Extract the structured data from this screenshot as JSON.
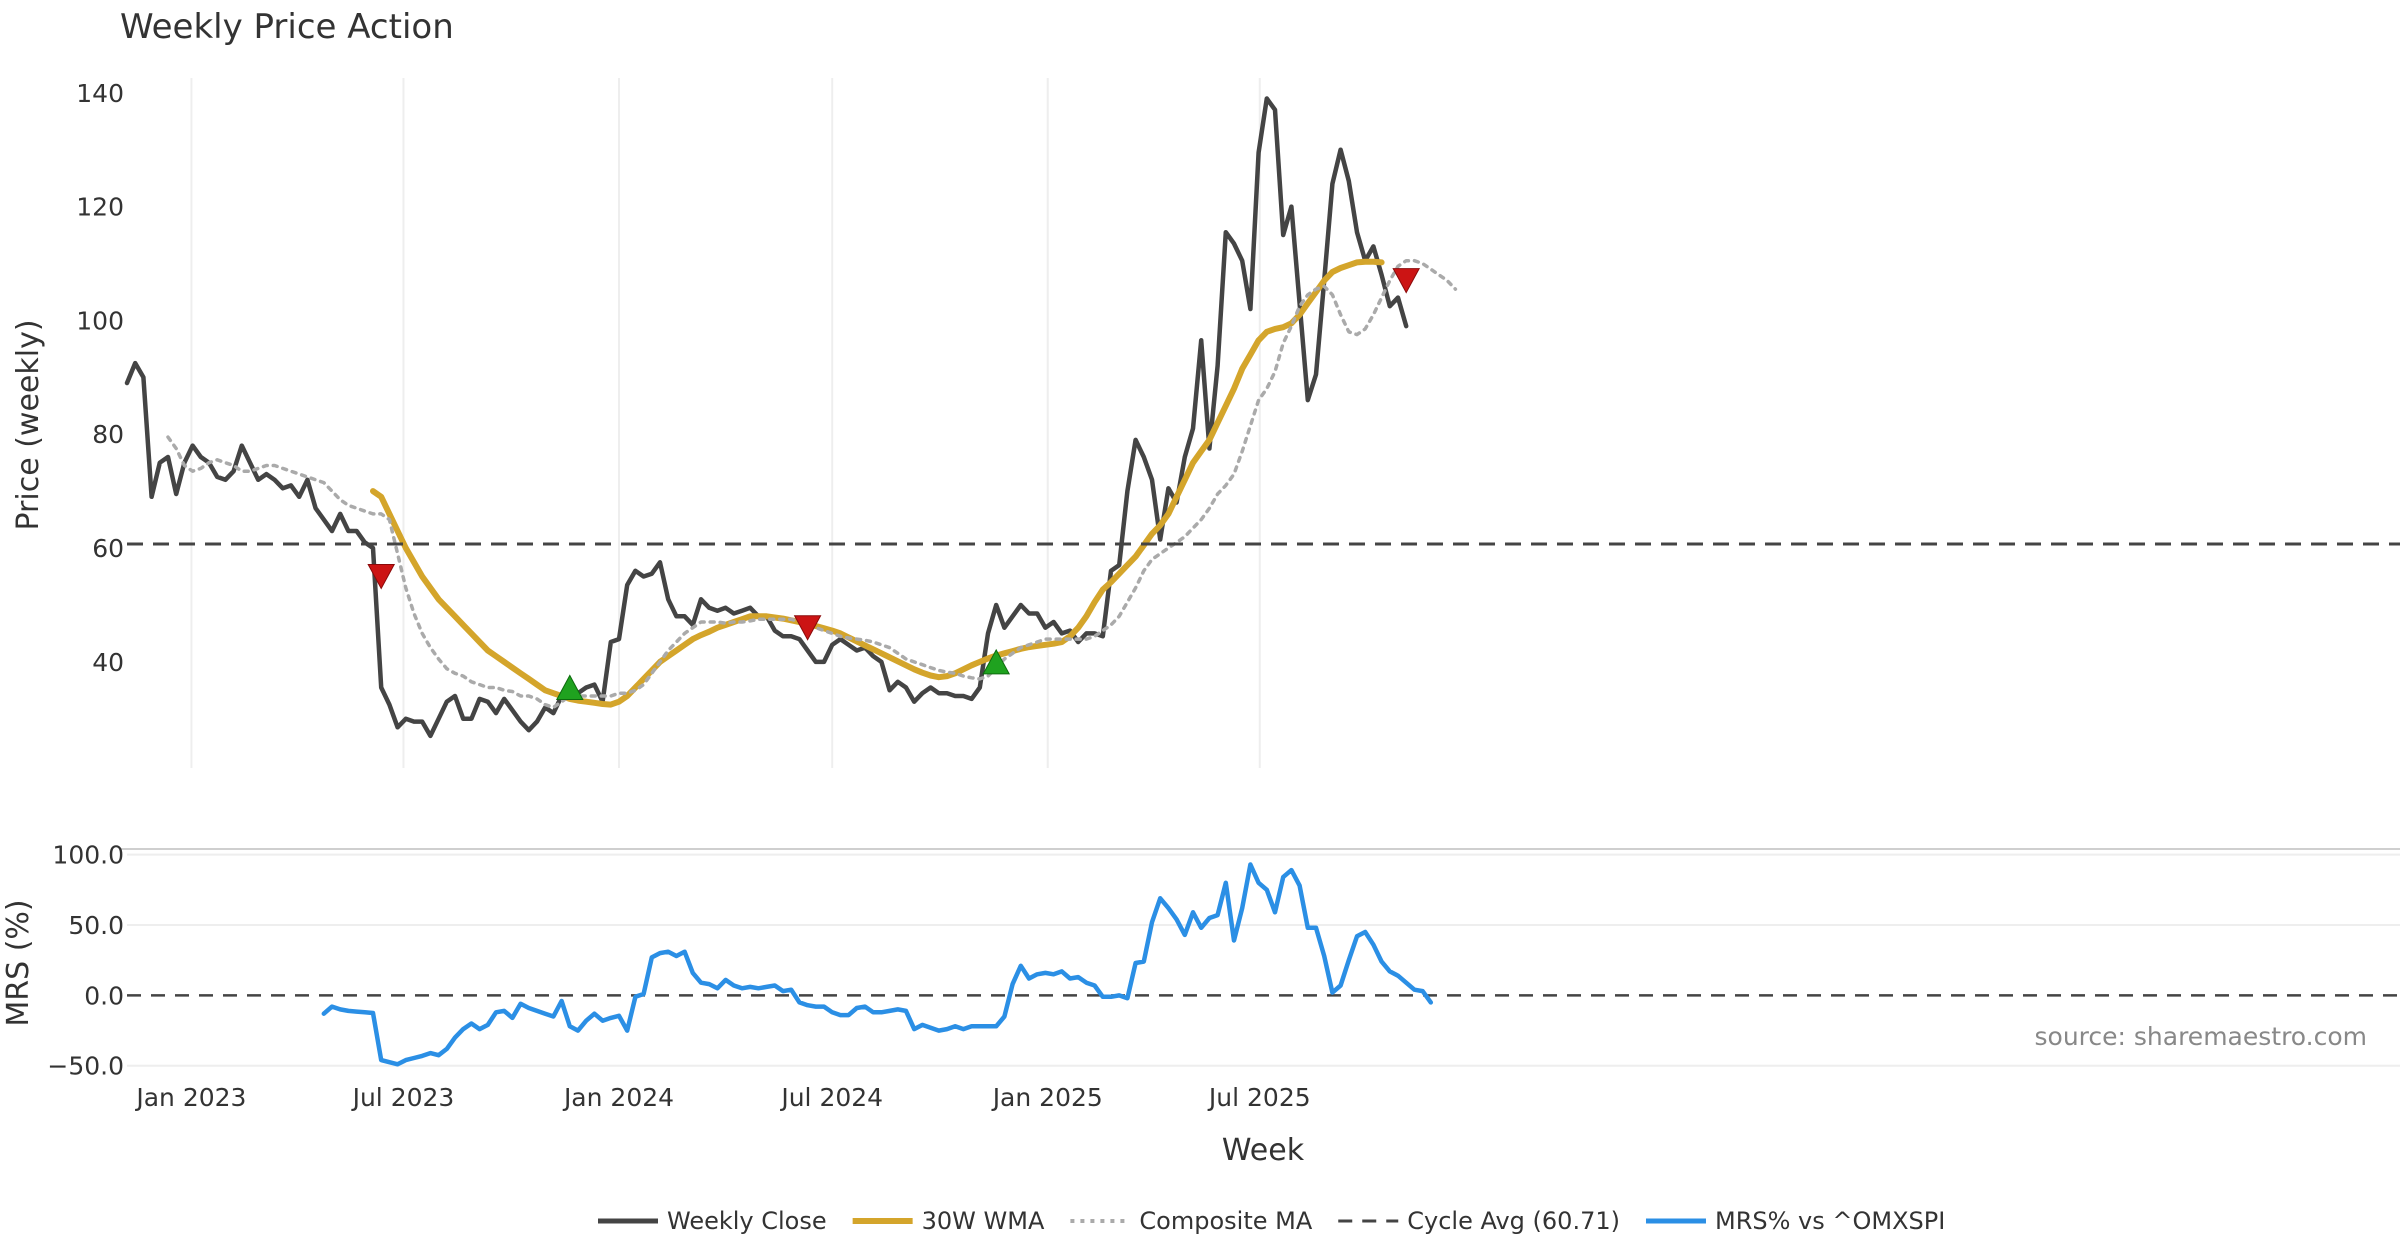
{
  "chart_data": {
    "type": "line",
    "title": "Weekly Price Action",
    "xlabel": "Week",
    "source": "source: sharemaestro.com",
    "x_start": "2022-11-07",
    "x_step_days": 7,
    "x_ticks": [
      "Jan 2023",
      "Jul 2023",
      "Jan 2024",
      "Jul 2024",
      "Jan 2025",
      "Jul 2025"
    ],
    "x_tick_dates": [
      "2023-01-01",
      "2023-07-01",
      "2024-01-01",
      "2024-07-01",
      "2025-01-01",
      "2025-07-01"
    ],
    "price_panel": {
      "ylabel": "Price (weekly)",
      "ylim": [
        21,
        144
      ],
      "y_ticks": [
        "40",
        "60",
        "80",
        "100",
        "120",
        "140"
      ],
      "y_tick_values": [
        40,
        60,
        80,
        100,
        120,
        140
      ],
      "series": [
        {
          "name": "Weekly Close",
          "color": "#444444",
          "style": "solid",
          "values": [
            89,
            92.5,
            90,
            69,
            75,
            76,
            69.5,
            75,
            78,
            76,
            75,
            72.5,
            72,
            73.5,
            78,
            75,
            72,
            73,
            72,
            70.5,
            71,
            69,
            72,
            67,
            65,
            63,
            66,
            63,
            63,
            61,
            60,
            35.5,
            32.5,
            28.5,
            30,
            29.5,
            29.5,
            27,
            30,
            33,
            34,
            30,
            30,
            33.5,
            33,
            31,
            33.5,
            31.5,
            29.5,
            28,
            29.5,
            32,
            31,
            34,
            34.5,
            34.5,
            35.5,
            36,
            33,
            43.5,
            44,
            53.5,
            56,
            55,
            55.5,
            57.5,
            51,
            48,
            48,
            46.5,
            51,
            49.5,
            49,
            49.5,
            48.5,
            49,
            49.5,
            48,
            48,
            45.5,
            44.5,
            44.5,
            44,
            42,
            40,
            40,
            43,
            44,
            43,
            42,
            42.5,
            41,
            40,
            35,
            36.5,
            35.5,
            33,
            34.5,
            35.5,
            34.5,
            34.5,
            34,
            34,
            33.5,
            35.5,
            45,
            50,
            46,
            48,
            50,
            48.5,
            48.5,
            46,
            47,
            45,
            45.5,
            43.5,
            45,
            45,
            44.5,
            56,
            57,
            70,
            79,
            76,
            72,
            61.5,
            70.5,
            68,
            76,
            81,
            96.5,
            77.5,
            92,
            115.5,
            113.5,
            110.5,
            102,
            129.5,
            139,
            137,
            115,
            120,
            103,
            86,
            90.5,
            107,
            124,
            130,
            124.5,
            115.5,
            110.5,
            113,
            108,
            102.5,
            104,
            99
          ]
        },
        {
          "name": "30W WMA",
          "color": "#D4A52B",
          "style": "solid",
          "start_index": 30,
          "values": [
            70,
            69,
            66,
            63,
            60,
            57.5,
            55,
            53,
            51,
            49.5,
            48,
            46.5,
            45,
            43.5,
            42,
            41,
            40,
            39,
            38,
            37,
            36,
            35,
            34.5,
            34,
            33.5,
            33.2,
            33,
            32.8,
            32.6,
            32.5,
            33,
            34,
            35.5,
            37,
            38.5,
            40,
            41,
            42,
            43,
            44,
            44.7,
            45.3,
            46,
            46.5,
            47,
            47.5,
            48,
            48,
            48,
            47.8,
            47.6,
            47.3,
            47,
            46.6,
            46.3,
            45.9,
            45.5,
            45,
            44.3,
            43.6,
            42.9,
            42.2,
            41.5,
            40.8,
            40.1,
            39.4,
            38.7,
            38.1,
            37.6,
            37.3,
            37.5,
            38,
            38.7,
            39.4,
            40,
            40.6,
            41.1,
            41.5,
            41.9,
            42.3,
            42.6,
            42.8,
            43,
            43.2,
            43.5,
            44.5,
            46,
            48,
            50.5,
            52.7,
            54,
            55.5,
            57,
            58.5,
            60.5,
            62.5,
            64,
            66,
            69,
            72,
            75,
            77,
            79,
            82,
            85,
            88,
            91.5,
            94,
            96.5,
            98,
            98.5,
            98.8,
            99.5,
            101,
            103,
            105,
            107,
            108.5,
            109.2,
            109.7,
            110.2,
            110.3,
            110.3,
            110.2
          ]
        },
        {
          "name": "Composite MA",
          "color": "#AAAAAA",
          "style": "dotted",
          "start_index": 5,
          "values": [
            79.5,
            77.5,
            74.5,
            73.5,
            74,
            75,
            75.5,
            75,
            74.5,
            73.5,
            73.5,
            74,
            74.5,
            74.5,
            74,
            73.5,
            73,
            72.5,
            72,
            71.5,
            70,
            68.5,
            67.5,
            67,
            66.5,
            66,
            66,
            65,
            59,
            53,
            48.5,
            45,
            42.5,
            40.5,
            38.8,
            38,
            37.5,
            36.5,
            36,
            35.5,
            35.5,
            35,
            34.8,
            34,
            34,
            33.5,
            32.5,
            32,
            33,
            34,
            34,
            34,
            34,
            34,
            34,
            34.5,
            34.5,
            35,
            36,
            38,
            40,
            42,
            43.5,
            45,
            46,
            47,
            47,
            47,
            46.8,
            47,
            47,
            47.2,
            47.5,
            47.5,
            47.5,
            47.5,
            47.5,
            47,
            46.5,
            46,
            45.5,
            45,
            44.5,
            44.2,
            44,
            43.8,
            43.5,
            43,
            42.5,
            41.5,
            40.5,
            40,
            39.5,
            39,
            38.5,
            38.2,
            38,
            37.5,
            37.2,
            37,
            37.5,
            39,
            40.5,
            41.5,
            42.5,
            43,
            43.5,
            44,
            44,
            44,
            44,
            44,
            44,
            44.5,
            45.5,
            46.5,
            48,
            50.5,
            53,
            56,
            58,
            59,
            60,
            61,
            62,
            63.5,
            65,
            67,
            69.5,
            71,
            73,
            77,
            81.5,
            86,
            88,
            91,
            96,
            99,
            102.5,
            104.5,
            105.5,
            106,
            104.5,
            101,
            98,
            97.5,
            98.5,
            101,
            104,
            107,
            109.5,
            110.5,
            110.5,
            110,
            109,
            108,
            107,
            105.5
          ]
        },
        {
          "name": "Cycle Avg (60.71)",
          "color": "#444444",
          "style": "dashed",
          "value": 60.71
        }
      ],
      "signals": [
        {
          "type": "sell",
          "index": 31,
          "value": 55
        },
        {
          "type": "buy",
          "index": 54,
          "value": 35.5
        },
        {
          "type": "sell",
          "index": 83,
          "value": 46
        },
        {
          "type": "buy",
          "index": 106,
          "value": 40
        },
        {
          "type": "sell",
          "index": 156,
          "value": 107
        }
      ]
    },
    "mrs_panel": {
      "ylabel": "MRS (%)",
      "ylim": [
        -58,
        104
      ],
      "y_ticks": [
        "−50.0",
        "0.0",
        "50.0",
        "100.0"
      ],
      "y_tick_values": [
        -50,
        0,
        50,
        100
      ],
      "zero_line": true,
      "series": [
        {
          "name": "MRS% vs ^OMXSPI",
          "color": "#2B8FE5",
          "style": "solid",
          "start_index": 24,
          "values": [
            -13,
            -8,
            -10,
            -11,
            -11.5,
            -12,
            -12.5,
            -46,
            -47.5,
            -49,
            -46,
            -44.5,
            -43,
            -41,
            -42.5,
            -38,
            -30,
            -24,
            -20,
            -24,
            -21,
            -12,
            -11,
            -16,
            -6,
            -9,
            -11,
            -13,
            -15,
            -4,
            -22,
            -25,
            -18,
            -13,
            -18,
            -16,
            -14.5,
            -25,
            -1,
            1,
            27,
            30,
            31,
            28,
            31,
            16,
            9,
            8,
            5,
            11,
            7,
            5,
            6,
            5,
            6,
            7,
            3,
            4,
            -5,
            -7,
            -8,
            -8,
            -12,
            -14,
            -14,
            -9,
            -8,
            -12,
            -12,
            -11,
            -10,
            -11,
            -24,
            -21,
            -23,
            -25,
            -24,
            -22,
            -24,
            -22,
            -22,
            -22,
            -22,
            -15,
            8,
            21,
            12,
            15,
            16,
            15,
            17,
            12,
            13,
            9,
            7,
            -1,
            -1,
            0,
            -2,
            23,
            24,
            52,
            69,
            62,
            54,
            43,
            59,
            48,
            55,
            57,
            80,
            39,
            62,
            93,
            80,
            75,
            59,
            84,
            89,
            78,
            48,
            48,
            28,
            2,
            7,
            25,
            42,
            45,
            36,
            24,
            17,
            14,
            9,
            4,
            3,
            -5
          ]
        }
      ]
    },
    "legend": [
      "Weekly Close",
      "30W WMA",
      "Composite MA",
      "Cycle Avg (60.71)",
      "MRS% vs ^OMXSPI"
    ],
    "legend_placement": "bottom"
  }
}
